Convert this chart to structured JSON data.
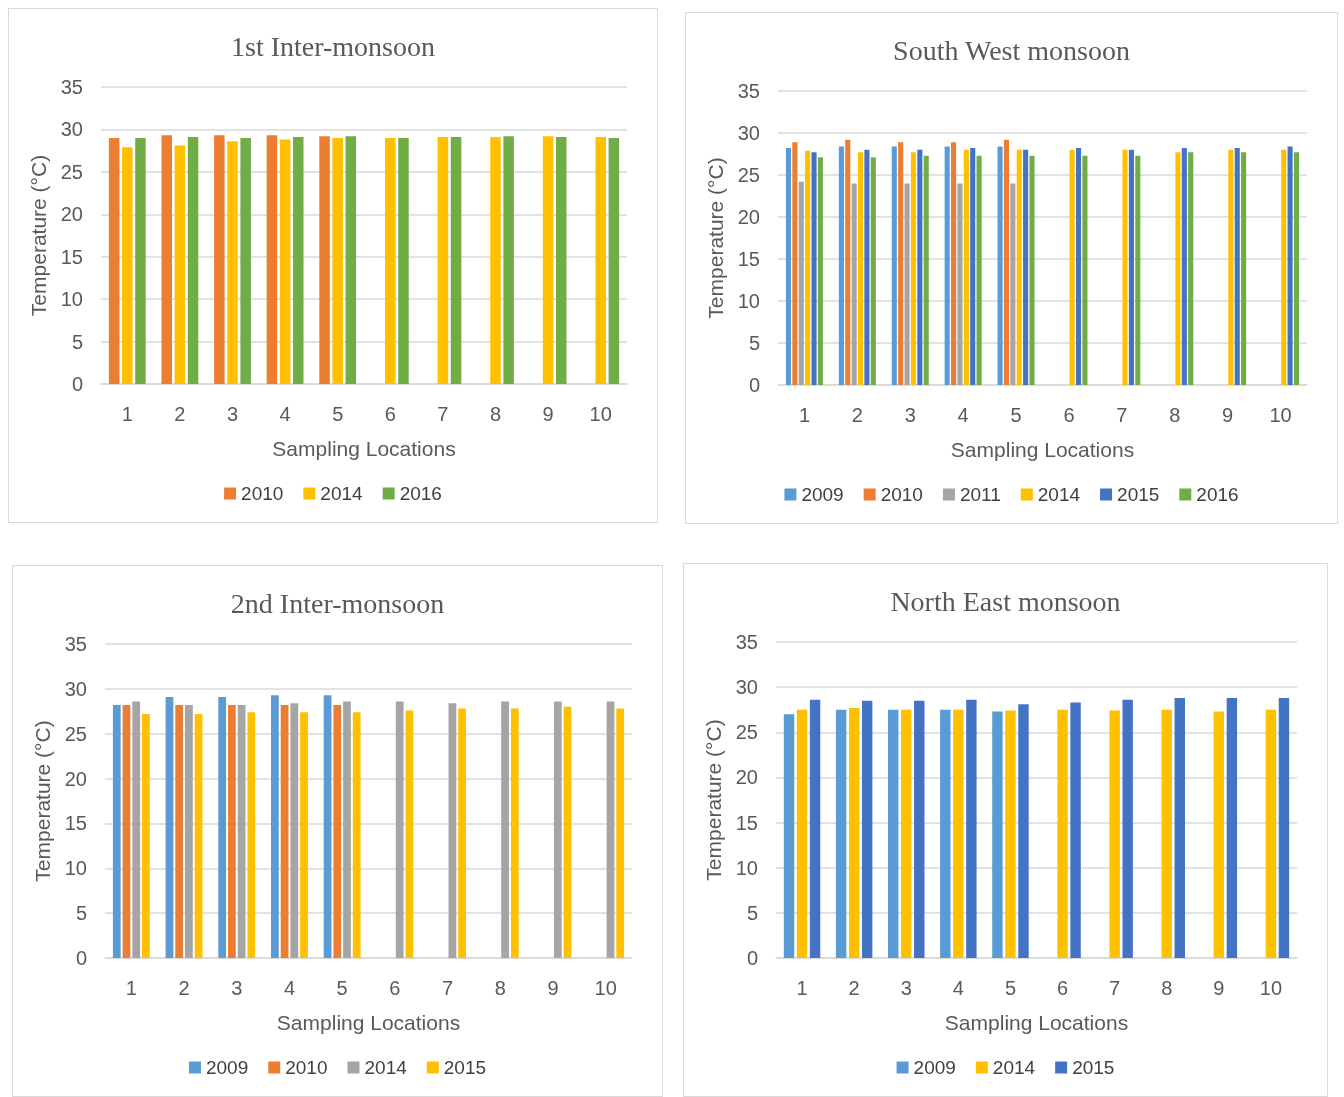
{
  "chart_data": [
    {
      "type": "bar",
      "title": "1st Inter-monsoon",
      "xlabel": "Sampling Locations",
      "ylabel": "Temperature (°C)",
      "categories": [
        "1",
        "2",
        "3",
        "4",
        "5",
        "6",
        "7",
        "8",
        "9",
        "10"
      ],
      "ylim": [
        0,
        35
      ],
      "yticks": [
        0,
        5,
        10,
        15,
        20,
        25,
        30,
        35
      ],
      "grid": "y",
      "legend": "bottom",
      "series": [
        {
          "name": "2010",
          "color": "#ed7d31",
          "values": [
            29.0,
            29.3,
            29.3,
            29.3,
            29.2,
            null,
            null,
            null,
            null,
            null
          ]
        },
        {
          "name": "2014",
          "color": "#ffc000",
          "values": [
            27.9,
            28.1,
            28.6,
            28.8,
            29.0,
            29.0,
            29.1,
            29.1,
            29.2,
            29.1
          ]
        },
        {
          "name": "2016",
          "color": "#70ad47",
          "values": [
            29.0,
            29.1,
            29.0,
            29.1,
            29.2,
            29.0,
            29.1,
            29.2,
            29.1,
            29.0
          ]
        }
      ]
    },
    {
      "type": "bar",
      "title": "South West monsoon",
      "xlabel": "Sampling Locations",
      "ylabel": "Temperature (°C)",
      "categories": [
        "1",
        "2",
        "3",
        "4",
        "5",
        "6",
        "7",
        "8",
        "9",
        "10"
      ],
      "ylim": [
        0,
        35
      ],
      "yticks": [
        0,
        5,
        10,
        15,
        20,
        25,
        30,
        35
      ],
      "grid": "y",
      "legend": "bottom",
      "series": [
        {
          "name": "2009",
          "color": "#5b9bd5",
          "values": [
            28.2,
            28.4,
            28.4,
            28.4,
            28.4,
            null,
            null,
            null,
            null,
            null
          ]
        },
        {
          "name": "2010",
          "color": "#ed7d31",
          "values": [
            28.9,
            29.2,
            28.9,
            28.9,
            29.2,
            null,
            null,
            null,
            null,
            null
          ]
        },
        {
          "name": "2011",
          "color": "#a5a5a5",
          "values": [
            24.2,
            24.0,
            24.0,
            24.0,
            24.0,
            null,
            null,
            null,
            null,
            null
          ]
        },
        {
          "name": "2014",
          "color": "#ffc000",
          "values": [
            27.9,
            27.7,
            27.7,
            28.0,
            28.0,
            28.0,
            28.0,
            27.7,
            28.0,
            28.0
          ]
        },
        {
          "name": "2015",
          "color": "#4472c4",
          "values": [
            27.7,
            28.0,
            28.0,
            28.2,
            28.0,
            28.2,
            28.0,
            28.2,
            28.2,
            28.4
          ]
        },
        {
          "name": "2016",
          "color": "#70ad47",
          "values": [
            27.1,
            27.1,
            27.3,
            27.3,
            27.3,
            27.3,
            27.3,
            27.7,
            27.7,
            27.7
          ]
        }
      ]
    },
    {
      "type": "bar",
      "title": "2nd Inter-monsoon",
      "xlabel": "Sampling Locations",
      "ylabel": "Temperature (°C)",
      "categories": [
        "1",
        "2",
        "3",
        "4",
        "5",
        "6",
        "7",
        "8",
        "9",
        "10"
      ],
      "ylim": [
        0,
        35
      ],
      "yticks": [
        0,
        5,
        10,
        15,
        20,
        25,
        30,
        35
      ],
      "grid": "y",
      "legend": "bottom",
      "series": [
        {
          "name": "2009",
          "color": "#5b9bd5",
          "values": [
            28.2,
            29.1,
            29.1,
            29.3,
            29.3,
            null,
            null,
            null,
            null,
            null
          ]
        },
        {
          "name": "2010",
          "color": "#ed7d31",
          "values": [
            28.2,
            28.2,
            28.2,
            28.2,
            28.2,
            null,
            null,
            null,
            null,
            null
          ]
        },
        {
          "name": "2014",
          "color": "#a5a5a5",
          "values": [
            28.6,
            28.2,
            28.2,
            28.4,
            28.6,
            28.6,
            28.4,
            28.6,
            28.6,
            28.6
          ]
        },
        {
          "name": "2015",
          "color": "#ffc000",
          "values": [
            27.2,
            27.2,
            27.4,
            27.4,
            27.4,
            27.6,
            27.8,
            27.8,
            28.0,
            27.8
          ]
        }
      ]
    },
    {
      "type": "bar",
      "title": "North East monsoon",
      "xlabel": "Sampling Locations",
      "ylabel": "Temperature (°C)",
      "categories": [
        "1",
        "2",
        "3",
        "4",
        "5",
        "6",
        "7",
        "8",
        "9",
        "10"
      ],
      "ylim": [
        0,
        35
      ],
      "yticks": [
        0,
        5,
        10,
        15,
        20,
        25,
        30,
        35
      ],
      "grid": "y",
      "legend": "bottom",
      "series": [
        {
          "name": "2009",
          "color": "#5b9bd5",
          "values": [
            27.0,
            27.5,
            27.5,
            27.5,
            27.3,
            null,
            null,
            null,
            null,
            null
          ]
        },
        {
          "name": "2014",
          "color": "#ffc000",
          "values": [
            27.5,
            27.7,
            27.5,
            27.5,
            27.4,
            27.5,
            27.4,
            27.5,
            27.3,
            27.5
          ]
        },
        {
          "name": "2015",
          "color": "#4472c4",
          "values": [
            28.6,
            28.5,
            28.5,
            28.6,
            28.1,
            28.3,
            28.6,
            28.8,
            28.8,
            28.8
          ]
        }
      ]
    }
  ]
}
